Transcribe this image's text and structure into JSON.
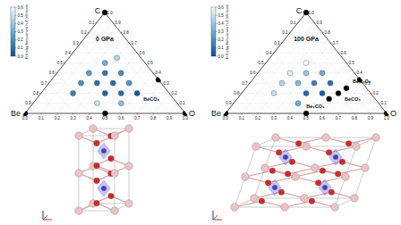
{
  "chart_data": [
    {
      "type": "ternary",
      "title": "0 GPa",
      "vertices": {
        "be": "Be",
        "c": "C",
        "o": "O"
      },
      "be": [
        1,
        0,
        0,
        0.5,
        0,
        0.2,
        0.4,
        0.3,
        0.2,
        0.25,
        0.15,
        0.4,
        0.3,
        0.5,
        0.2,
        0.6,
        0.4,
        0.3,
        0.5,
        0.35
      ],
      "c": [
        0,
        1,
        0,
        0,
        0.333,
        0.2,
        0.4,
        0.4,
        0.4,
        0.5,
        0.55,
        0.3,
        0.3,
        0.3,
        0.3,
        0.2,
        0.2,
        0.2,
        0.1,
        0.1
      ],
      "o": [
        0,
        0,
        1,
        0.5,
        0.667,
        0.6,
        0.2,
        0.3,
        0.4,
        0.25,
        0.3,
        0.3,
        0.4,
        0.2,
        0.5,
        0.2,
        0.4,
        0.5,
        0.4,
        0.55
      ],
      "values": [
        0,
        0,
        0,
        0,
        0,
        0.02,
        0.25,
        0.12,
        0.18,
        0.3,
        0.45,
        0.1,
        0.08,
        0.2,
        0.22,
        0.15,
        0.06,
        0.1,
        0.5,
        0.35
      ],
      "be_ticks": [
        0.1,
        0.2,
        0.3,
        0.4,
        0.5,
        0.6,
        0.7,
        0.8,
        0.9
      ],
      "c_ticks": [
        0.1,
        0.2,
        0.3,
        0.4,
        0.5,
        0.6,
        0.7,
        0.8,
        0.9,
        {
          "value": 1,
          "label": "1.0"
        }
      ],
      "o_ticks": [
        {
          "value": 0,
          "label": "0.0"
        },
        0.1,
        0.2,
        0.3,
        0.4,
        0.5,
        0.6,
        0.7,
        0.8,
        0.9,
        {
          "value": 1,
          "label": "1.0"
        }
      ],
      "grid": true,
      "colorbar": {
        "label": "Enthalpy from convex hull (eV/atom)",
        "range": [
          0,
          0.6
        ],
        "ticks": [
          {
            "value": 0,
            "label": "0.0"
          },
          0.1,
          0.2,
          0.3,
          0.4,
          0.5,
          0.6
        ]
      },
      "annotations": [
        {
          "text": "BeCO₃",
          "be": 0.2,
          "c": 0.2,
          "o": 0.6
        }
      ]
    },
    {
      "type": "ternary",
      "title": "100 GPa",
      "vertices": {
        "be": "Be",
        "c": "C",
        "o": "O"
      },
      "be": [
        1,
        0,
        0,
        0.5,
        0,
        0.2,
        0.125,
        0.286,
        0.4,
        0.3,
        0.2,
        0.25,
        0.4,
        0.3,
        0.5,
        0.2,
        0.6,
        0.4,
        0.3,
        0.5
      ],
      "c": [
        0,
        1,
        0,
        0,
        0.333,
        0.2,
        0.25,
        0.143,
        0.4,
        0.4,
        0.4,
        0.5,
        0.3,
        0.3,
        0.3,
        0.3,
        0.2,
        0.2,
        0.2,
        0.1
      ],
      "o": [
        0,
        0,
        1,
        0.5,
        0.667,
        0.6,
        0.625,
        0.571,
        0.2,
        0.3,
        0.4,
        0.25,
        0.3,
        0.4,
        0.2,
        0.5,
        0.2,
        0.4,
        0.5,
        0.4
      ],
      "values": [
        0,
        0,
        0,
        0,
        0,
        0,
        0,
        0,
        0.55,
        0.4,
        0.3,
        0.6,
        0.35,
        0.15,
        0.45,
        0.1,
        0.5,
        0.08,
        0.05,
        0.3
      ],
      "be_ticks": [
        0.1,
        0.2,
        0.3,
        0.4,
        0.5,
        0.6,
        0.7,
        0.8,
        0.9
      ],
      "c_ticks": [
        0.1,
        0.2,
        0.3,
        0.4,
        0.5,
        0.6,
        0.7,
        0.8,
        0.9,
        {
          "value": 1,
          "label": "1.0"
        }
      ],
      "o_ticks": [
        {
          "value": 0,
          "label": "0.0"
        },
        0.1,
        0.2,
        0.3,
        0.4,
        0.5,
        0.6,
        0.7,
        0.8,
        0.9,
        {
          "value": 1,
          "label": "1.0"
        }
      ],
      "grid": true,
      "colorbar": {
        "label": "Enthalpy from convex hull (eV/atom)",
        "range": [
          0,
          0.6
        ],
        "ticks": [
          {
            "value": 0,
            "label": "0.0"
          },
          0.1,
          0.2,
          0.3,
          0.4,
          0.5,
          0.6
        ]
      },
      "annotations": [
        {
          "text": "BeC₂O₅",
          "be": 0.125,
          "c": 0.25,
          "o": 0.625
        },
        {
          "text": "Be₂CO₄",
          "be": 0.286,
          "c": 0.143,
          "o": 0.571
        },
        {
          "text": "BeCO₃",
          "be": 0.2,
          "c": 0.2,
          "o": 0.6
        }
      ]
    }
  ]
}
